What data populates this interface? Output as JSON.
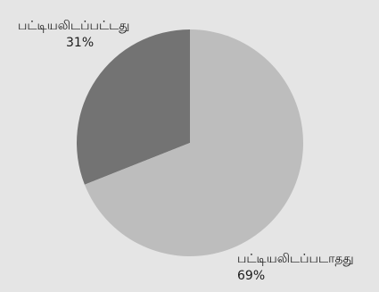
{
  "chart_data": {
    "type": "pie",
    "title": "",
    "slices": [
      {
        "label": "பட்டியலிடப்பட்டது",
        "value": 31,
        "display": "31%",
        "color": "#737373"
      },
      {
        "label": "பட்டியலிடப்படாதது",
        "value": 69,
        "display": "69%",
        "color": "#bdbdbd"
      }
    ],
    "start_angle": "12 o'clock",
    "direction": "counterclockwise for first slice",
    "background_color": "#e5e5e5"
  }
}
